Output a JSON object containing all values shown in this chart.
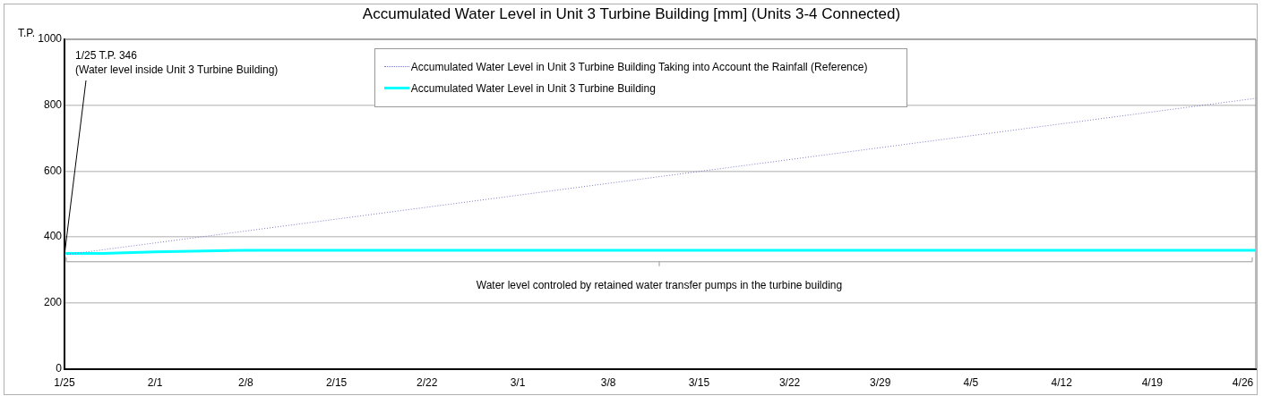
{
  "chart_data": {
    "type": "line",
    "title": "Accumulated Water Level in Unit 3 Turbine Building [mm] (Units 3-4 Connected)",
    "ylabel": "T.P.",
    "series": [
      {
        "name": "Accumulated Water Level in Unit 3 Turbine Building Taking into Account the Rainfall (Reference)",
        "color": "#7a7ac8",
        "line_style": "dotted",
        "x": [
          "--01-25",
          "--04-27"
        ],
        "values": [
          346,
          821
        ]
      },
      {
        "name": "Accumulated Water Level in Unit 3 Turbine Building",
        "color": "#00ffff",
        "line_style": "solid",
        "x": [
          "--01-25",
          "--01-28",
          "--02-01",
          "--02-08",
          "--03-01",
          "--04-01",
          "--04-27"
        ],
        "values": [
          350,
          350,
          355,
          360,
          360,
          360,
          360
        ]
      }
    ],
    "xlim": [
      "--01-25",
      "--04-27"
    ],
    "xticks": [
      {
        "value": "--01-25",
        "label": "1/25"
      },
      {
        "value": "--02-01",
        "label": "2/1"
      },
      {
        "value": "--02-08",
        "label": "2/8"
      },
      {
        "value": "--02-15",
        "label": "2/15"
      },
      {
        "value": "--02-22",
        "label": "2/22"
      },
      {
        "value": "--03-01",
        "label": "3/1"
      },
      {
        "value": "--03-08",
        "label": "3/8"
      },
      {
        "value": "--03-15",
        "label": "3/15"
      },
      {
        "value": "--03-22",
        "label": "3/22"
      },
      {
        "value": "--03-29",
        "label": "3/29"
      },
      {
        "value": "--04-05",
        "label": "4/5"
      },
      {
        "value": "--04-12",
        "label": "4/12"
      },
      {
        "value": "--04-19",
        "label": "4/19"
      },
      {
        "value": "--04-26",
        "label": "4/26"
      }
    ],
    "ylim": [
      0,
      1000
    ],
    "yticks": [
      0,
      200,
      400,
      600,
      800,
      1000
    ],
    "grid": "y",
    "legend": "top",
    "marker": "none",
    "ref_lines": [
      {
        "axis": "y",
        "value": 325,
        "label": "Water level controled by retained water transfer pumps in the turbine building",
        "color": "#999999"
      }
    ],
    "annotations": [
      {
        "text": "1/25 T.P. 346\n(Water level inside Unit 3 Turbine Building)",
        "x": "--01-25",
        "y": 346
      }
    ]
  }
}
